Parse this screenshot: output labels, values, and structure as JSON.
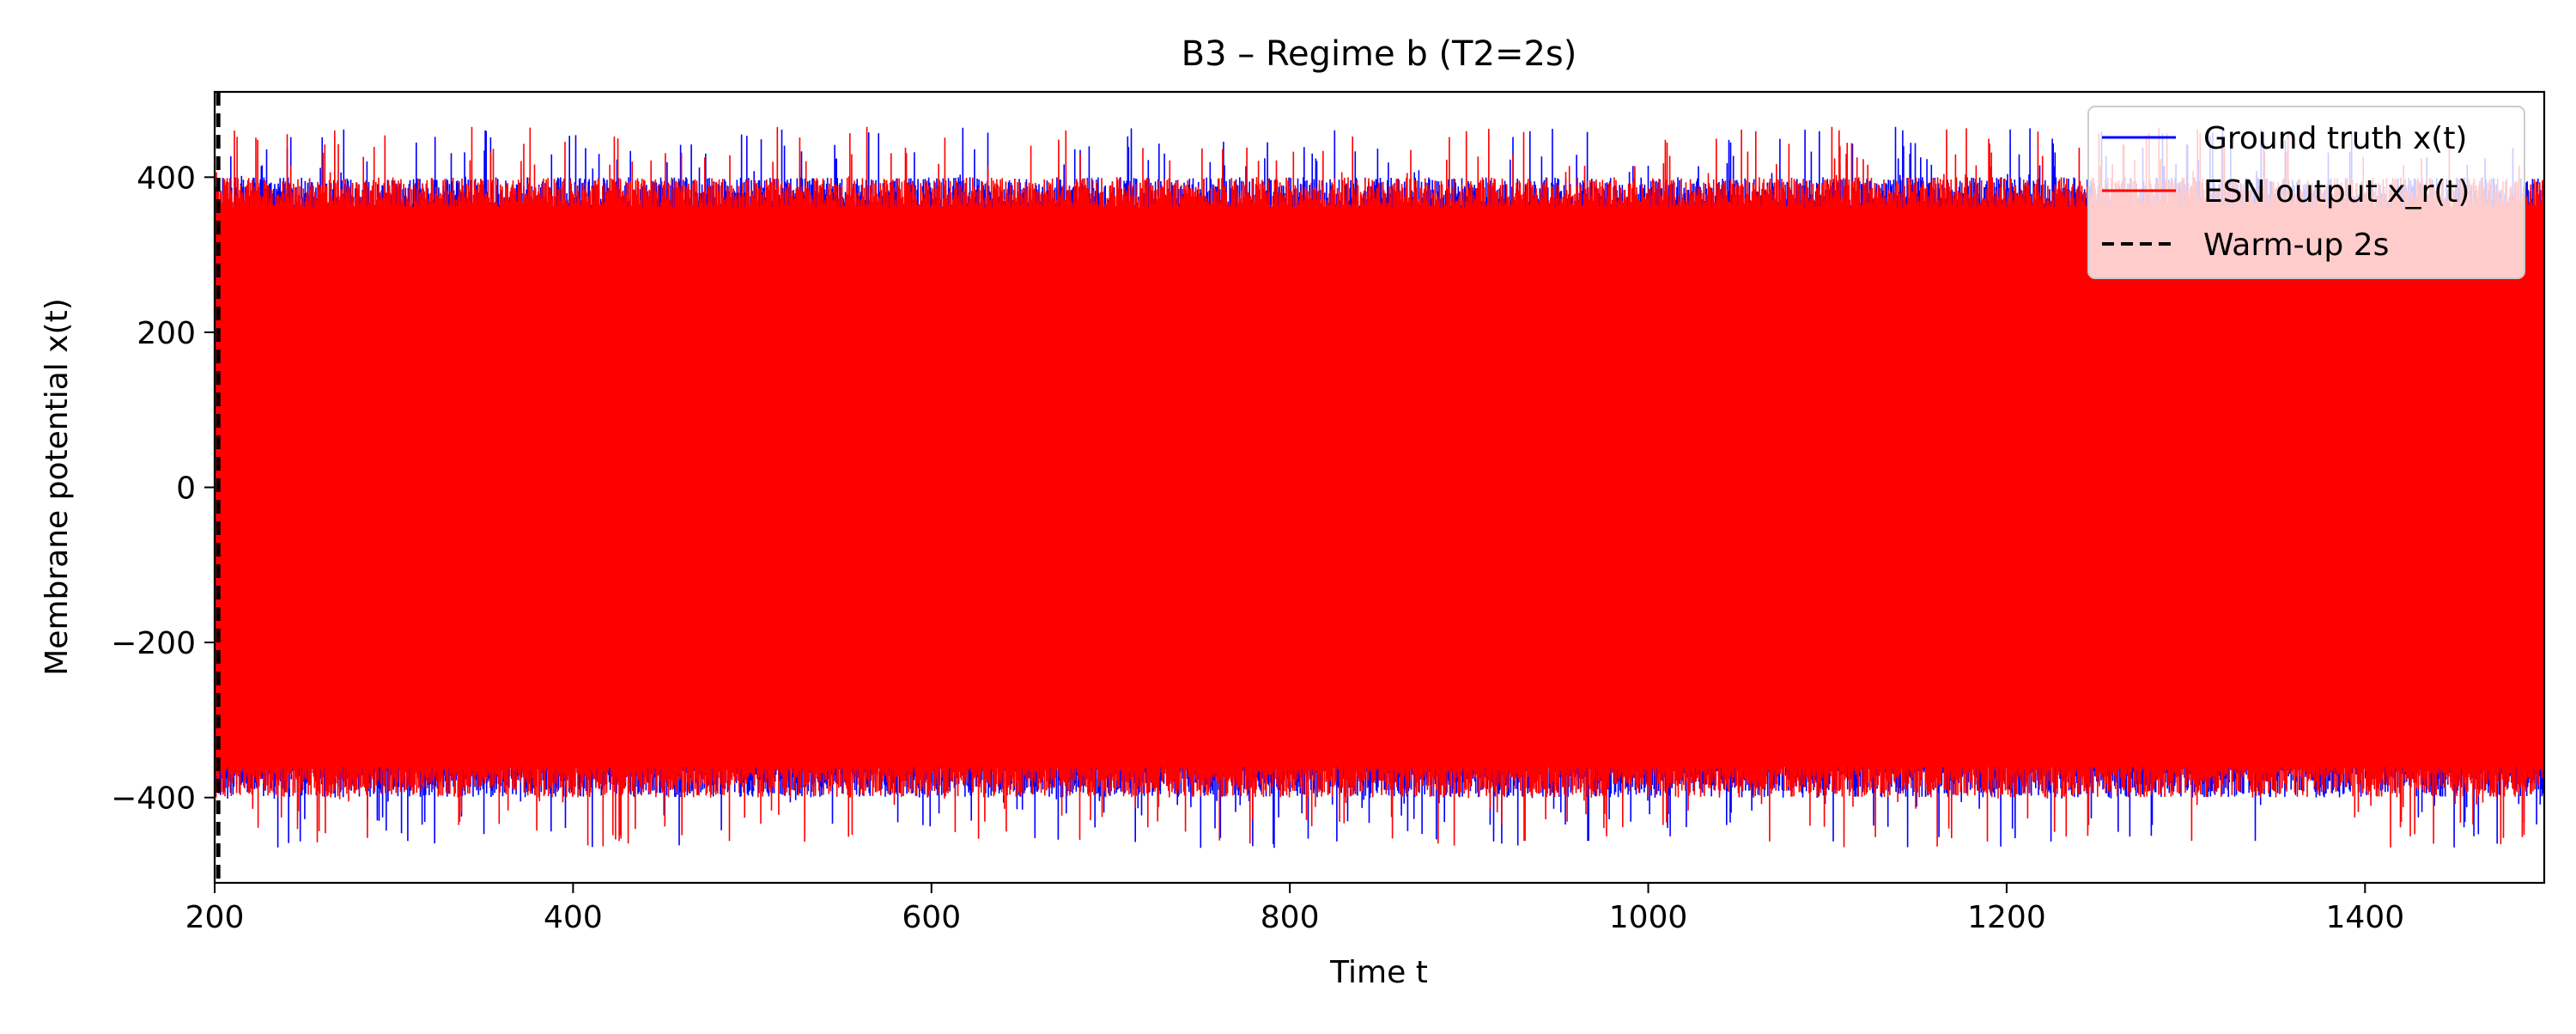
{
  "chart_data": {
    "type": "line",
    "title": "B3 – Regime b (T2=2s)",
    "xlabel": "Time t",
    "ylabel": "Membrane potential x(t)",
    "xlim": [
      200,
      1500
    ],
    "ylim": [
      -510,
      510
    ],
    "xticks": [
      200,
      400,
      600,
      800,
      1000,
      1200,
      1400
    ],
    "yticks": [
      -400,
      -200,
      0,
      200,
      400
    ],
    "grid": false,
    "legend_position": "top-right",
    "series": [
      {
        "name": "Ground truth x(t)",
        "color": "#0000ff",
        "style": "solid",
        "envelope": {
          "x_range": [
            200,
            1500
          ],
          "typical_min": -380,
          "typical_max": 380,
          "peak_min": -465,
          "peak_max": 465
        }
      },
      {
        "name": "ESN output x_r(t)",
        "color": "#ff0000",
        "style": "solid",
        "envelope": {
          "x_range": [
            200,
            1500
          ],
          "typical_min": -380,
          "typical_max": 380,
          "peak_min": -465,
          "peak_max": 465
        }
      }
    ],
    "vlines": [
      {
        "name": "Warm-up 2s",
        "x": 202,
        "color": "#000000",
        "style": "dashed"
      }
    ]
  }
}
